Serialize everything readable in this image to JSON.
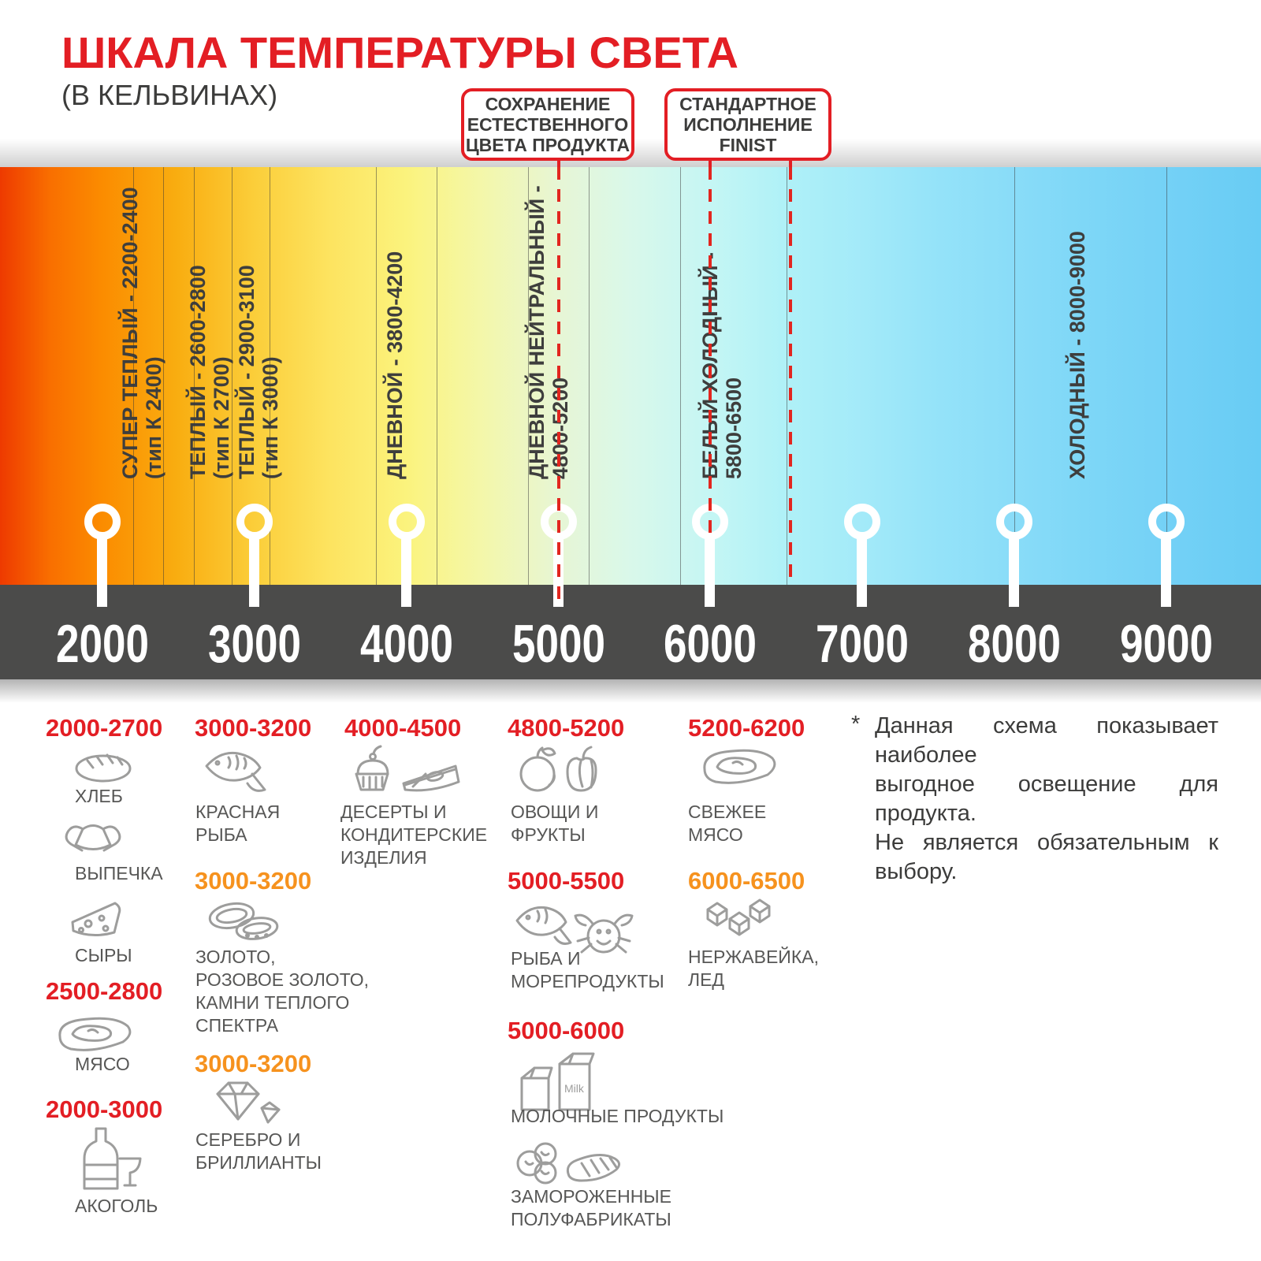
{
  "header": {
    "title": "ШКАЛА ТЕМПЕРАТУРЫ СВЕТА",
    "subtitle": "(В КЕЛЬВИНАХ)"
  },
  "callouts": [
    {
      "lines": [
        "СОХРАНЕНИЕ",
        "ЕСТЕСТВЕННОГО",
        "ЦВЕТА ПРОДУКТА"
      ],
      "anchors_k": [
        5000
      ]
    },
    {
      "lines": [
        "СТАНДАРТНОЕ",
        "ИСПОЛНЕНИЕ",
        "FINIST"
      ],
      "anchors_k": [
        6000,
        6525
      ]
    }
  ],
  "scale": {
    "unit": "K",
    "min": 2000,
    "max": 9000,
    "ticks": [
      2000,
      3000,
      4000,
      5000,
      6000,
      7000,
      8000,
      9000
    ],
    "band_boundaries_k": [
      2200,
      2400,
      2600,
      2850,
      3100,
      3800,
      4200,
      4800,
      5200,
      5800,
      6500,
      8000,
      9000
    ],
    "dashed_lines_k": [
      5000,
      6000,
      6525
    ],
    "bands": [
      {
        "line1": "СУПЕР ТЕПЛЫЙ - 2200-2400",
        "line2": "(тип К 2400)"
      },
      {
        "line1": "ТЕПЛЫЙ - 2600-2800",
        "line2": "(тип К 2700)"
      },
      {
        "line1": "ТЕПЛЫЙ - 2900-3100",
        "line2": "(тип К 3000)"
      },
      {
        "line1": "ДНЕВНОЙ - 3800-4200",
        "line2": ""
      },
      {
        "line1": "ДНЕВНОЙ НЕЙТРАЛЬНЫЙ -",
        "line2": "4800-5200"
      },
      {
        "line1": "БЕЛЫЙ ХОЛОДНЫЙ -",
        "line2": "5800-6500"
      },
      {
        "line1": "ХОЛОДНЫЙ - 8000-9000",
        "line2": ""
      }
    ]
  },
  "legend": {
    "groups": [
      {
        "range": "2000-2700",
        "style": "red",
        "items": [
          {
            "icon": "bread-icon",
            "lines": [
              "ХЛЕБ"
            ]
          },
          {
            "icon": "croissant-icon",
            "lines": [
              "ВЫПЕЧКА"
            ]
          },
          {
            "icon": "cheese-icon",
            "lines": [
              "СЫРЫ"
            ]
          }
        ]
      },
      {
        "range": "2500-2800",
        "style": "red",
        "items": [
          {
            "icon": "meat-icon",
            "lines": [
              "МЯСО"
            ]
          }
        ]
      },
      {
        "range": "2000-3000",
        "style": "red",
        "items": [
          {
            "icon": "alcohol-icon",
            "lines": [
              "АКОГОЛЬ"
            ]
          }
        ]
      },
      {
        "range": "3000-3200",
        "style": "red",
        "items": [
          {
            "icon": "fish-icon",
            "lines": [
              "КРАСНАЯ",
              "РЫБА"
            ]
          }
        ]
      },
      {
        "range": "3000-3200",
        "style": "orange",
        "items": [
          {
            "icon": "rings-icon",
            "lines": [
              "ЗОЛОТО,",
              "РОЗОВОЕ ЗОЛОТО,",
              "КАМНИ ТЕПЛОГО",
              "СПЕКТРА"
            ]
          }
        ]
      },
      {
        "range": "3000-3200",
        "style": "orange",
        "items": [
          {
            "icon": "diamond-icon",
            "lines": [
              "СЕРЕБРО И",
              "БРИЛЛИАНТЫ"
            ]
          }
        ]
      },
      {
        "range": "4000-4500",
        "style": "red",
        "items": [
          {
            "icon": "dessert-icon",
            "lines": [
              "ДЕСЕРТЫ И",
              "КОНДИТЕРСКИЕ",
              "ИЗДЕЛИЯ"
            ]
          }
        ]
      },
      {
        "range": "4800-5200",
        "style": "red",
        "items": [
          {
            "icon": "vegetables-icon",
            "lines": [
              "ОВОЩИ И",
              "ФРУКТЫ"
            ]
          }
        ]
      },
      {
        "range": "5000-5500",
        "style": "red",
        "items": [
          {
            "icon": "seafood-icon",
            "lines": [
              "РЫБА И",
              "МОРЕПРОДУКТЫ"
            ]
          }
        ]
      },
      {
        "range": "5000-6000",
        "style": "red",
        "items": [
          {
            "icon": "milk-icon",
            "lines": [
              "МОЛОЧНЫЕ ПРОДУКТЫ"
            ]
          },
          {
            "icon": "frozen-icon",
            "lines": [
              "ЗАМОРОЖЕННЫЕ",
              "ПОЛУФАБРИКАТЫ"
            ]
          }
        ]
      },
      {
        "range": "5200-6200",
        "style": "red",
        "items": [
          {
            "icon": "fresh-meat-icon",
            "lines": [
              "СВЕЖЕЕ",
              "МЯСО"
            ]
          }
        ]
      },
      {
        "range": "6000-6500",
        "style": "orange",
        "items": [
          {
            "icon": "ice-icon",
            "lines": [
              "НЕРЖАВЕЙКА,",
              "ЛЕД"
            ]
          }
        ]
      }
    ],
    "footnote_marker": "*",
    "footnote_lines": [
      "Данная схема показывает наиболее",
      "выгодное освещение для продукта.",
      "Не является обязательным к выбору."
    ]
  },
  "colors": {
    "accent_red": "#e31e24",
    "accent_orange": "#f6921e",
    "dark_text": "#3c3c3b",
    "legend_text": "#575756",
    "icon_gray": "#9d9d9c",
    "axis_bar": "#4b4b4a",
    "gradient_left": "#ee3a00",
    "gradient_right": "#68ccf4"
  }
}
